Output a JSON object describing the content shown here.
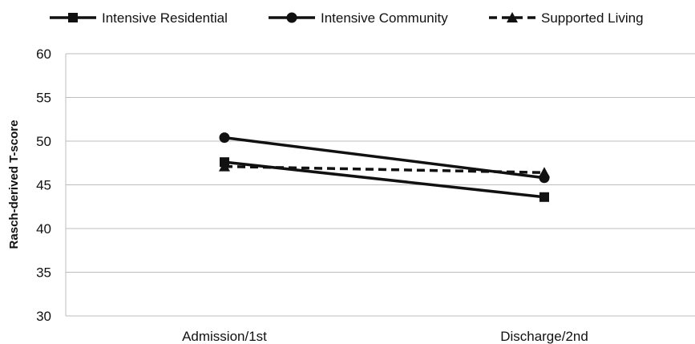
{
  "chart_data": {
    "type": "line",
    "title": "",
    "xlabel": "",
    "ylabel": "Rasch-derived T-score",
    "categories": [
      "Admission/1st",
      "Discharge/2nd"
    ],
    "ylim": [
      30,
      60
    ],
    "yticks": [
      30,
      35,
      40,
      45,
      50,
      55,
      60
    ],
    "grid": true,
    "legend_position": "top",
    "series": [
      {
        "name": "Intensive Residential",
        "values": [
          47.6,
          43.6
        ],
        "marker": "square",
        "line_style": "solid",
        "color": "#111111"
      },
      {
        "name": "Intensive Community",
        "values": [
          50.4,
          45.8
        ],
        "marker": "circle",
        "line_style": "solid",
        "color": "#111111"
      },
      {
        "name": "Supported Living",
        "values": [
          47.1,
          46.4
        ],
        "marker": "triangle",
        "line_style": "dashed",
        "color": "#111111"
      }
    ]
  }
}
